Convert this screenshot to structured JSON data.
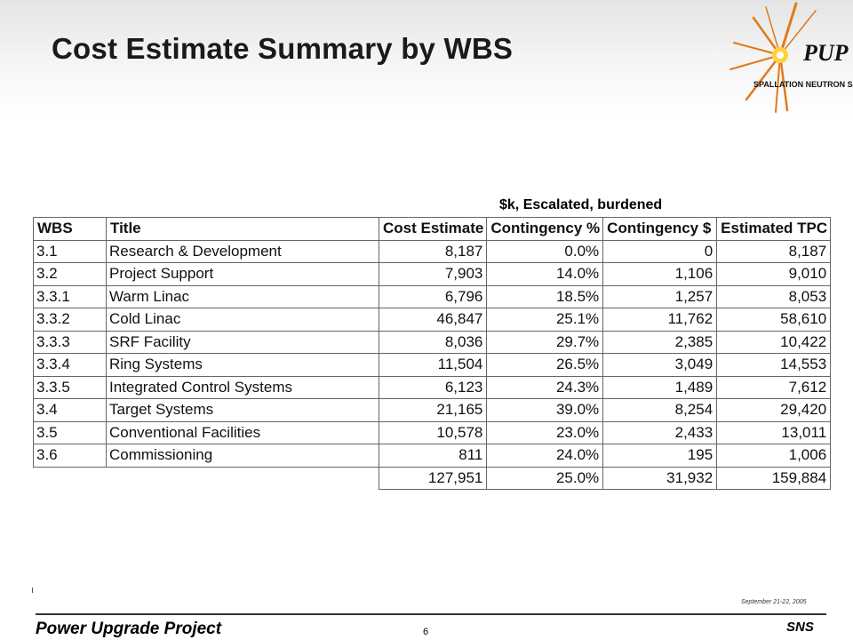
{
  "slide": {
    "title": "Cost Estimate Summary by WBS",
    "subtitle": "$k, Escalated, burdened"
  },
  "logo": {
    "text": "PUP",
    "tagline": "SPALLATION NEUTRON SOURCE",
    "colors": {
      "burst": "#e07a1a",
      "core": "#ffd23a",
      "text": "#111111"
    }
  },
  "table": {
    "headers": [
      "WBS",
      "Title",
      "Cost Estimate",
      "Contingency %",
      "Contingency $",
      "Estimated TPC"
    ],
    "rows": [
      [
        "3.1",
        "Research & Development",
        "8,187",
        "0.0%",
        "0",
        "8,187"
      ],
      [
        "3.2",
        "Project Support",
        "7,903",
        "14.0%",
        "1,106",
        "9,010"
      ],
      [
        "3.3.1",
        "Warm Linac",
        "6,796",
        "18.5%",
        "1,257",
        "8,053"
      ],
      [
        "3.3.2",
        "Cold Linac",
        "46,847",
        "25.1%",
        "11,762",
        "58,610"
      ],
      [
        "3.3.3",
        "SRF Facility",
        "8,036",
        "29.7%",
        "2,385",
        "10,422"
      ],
      [
        "3.3.4",
        "Ring Systems",
        "11,504",
        "26.5%",
        "3,049",
        "14,553"
      ],
      [
        "3.3.5",
        "Integrated Control Systems",
        "6,123",
        "24.3%",
        "1,489",
        "7,612"
      ],
      [
        "3.4",
        "Target Systems",
        "21,165",
        "39.0%",
        "8,254",
        "29,420"
      ],
      [
        "3.5",
        "Conventional Facilities",
        "10,578",
        "23.0%",
        "2,433",
        "13,011"
      ],
      [
        "3.6",
        "Commissioning",
        "811",
        "24.0%",
        "195",
        "1,006"
      ]
    ],
    "totals": [
      "127,951",
      "25.0%",
      "31,932",
      "159,884"
    ]
  },
  "footer": {
    "project": "Power Upgrade Project",
    "page": "6",
    "org": "SNS",
    "date": "September 21-22, 2005"
  }
}
